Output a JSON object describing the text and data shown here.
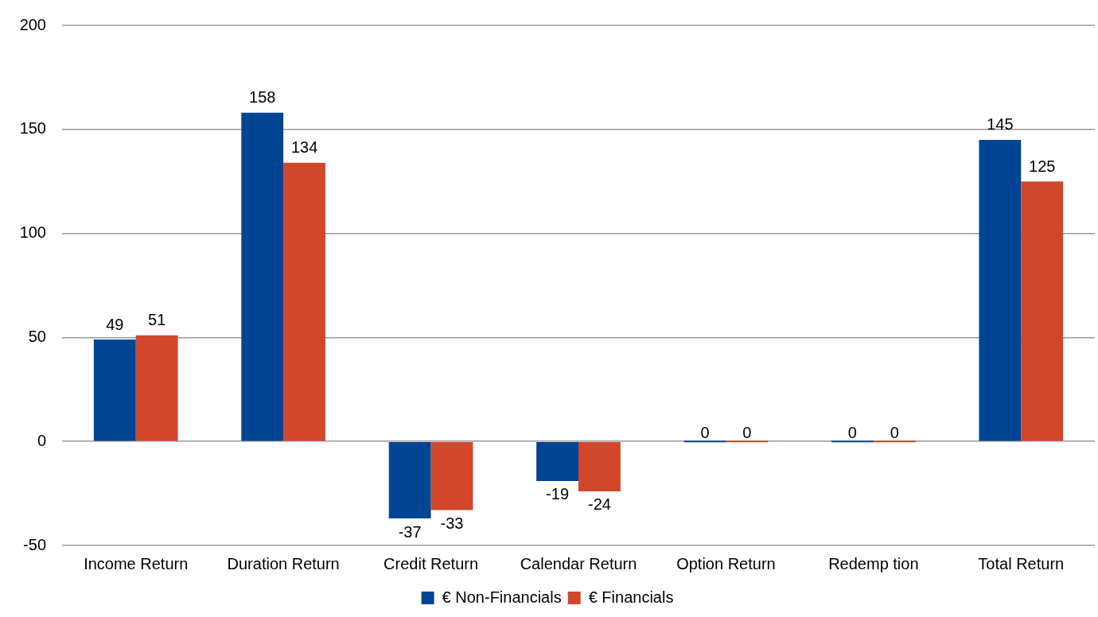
{
  "chart_data": {
    "type": "bar",
    "categories": [
      "Income Return",
      "Duration Return",
      "Credit Return",
      "Calendar Return",
      "Option Return",
      "Redemp tion",
      "Total Return"
    ],
    "series": [
      {
        "name": "€ Non-Financials",
        "color": "#004494",
        "values": [
          49,
          158,
          -37,
          -19,
          0,
          0,
          145
        ]
      },
      {
        "name": "€ Financials",
        "color": "#d2472b",
        "values": [
          51,
          134,
          -33,
          -24,
          0,
          0,
          125
        ]
      }
    ],
    "ylim": [
      -50,
      200
    ],
    "yticks": [
      -50,
      0,
      50,
      100,
      150,
      200
    ],
    "grid": "y",
    "legend": "bottom",
    "data_labels": true
  }
}
